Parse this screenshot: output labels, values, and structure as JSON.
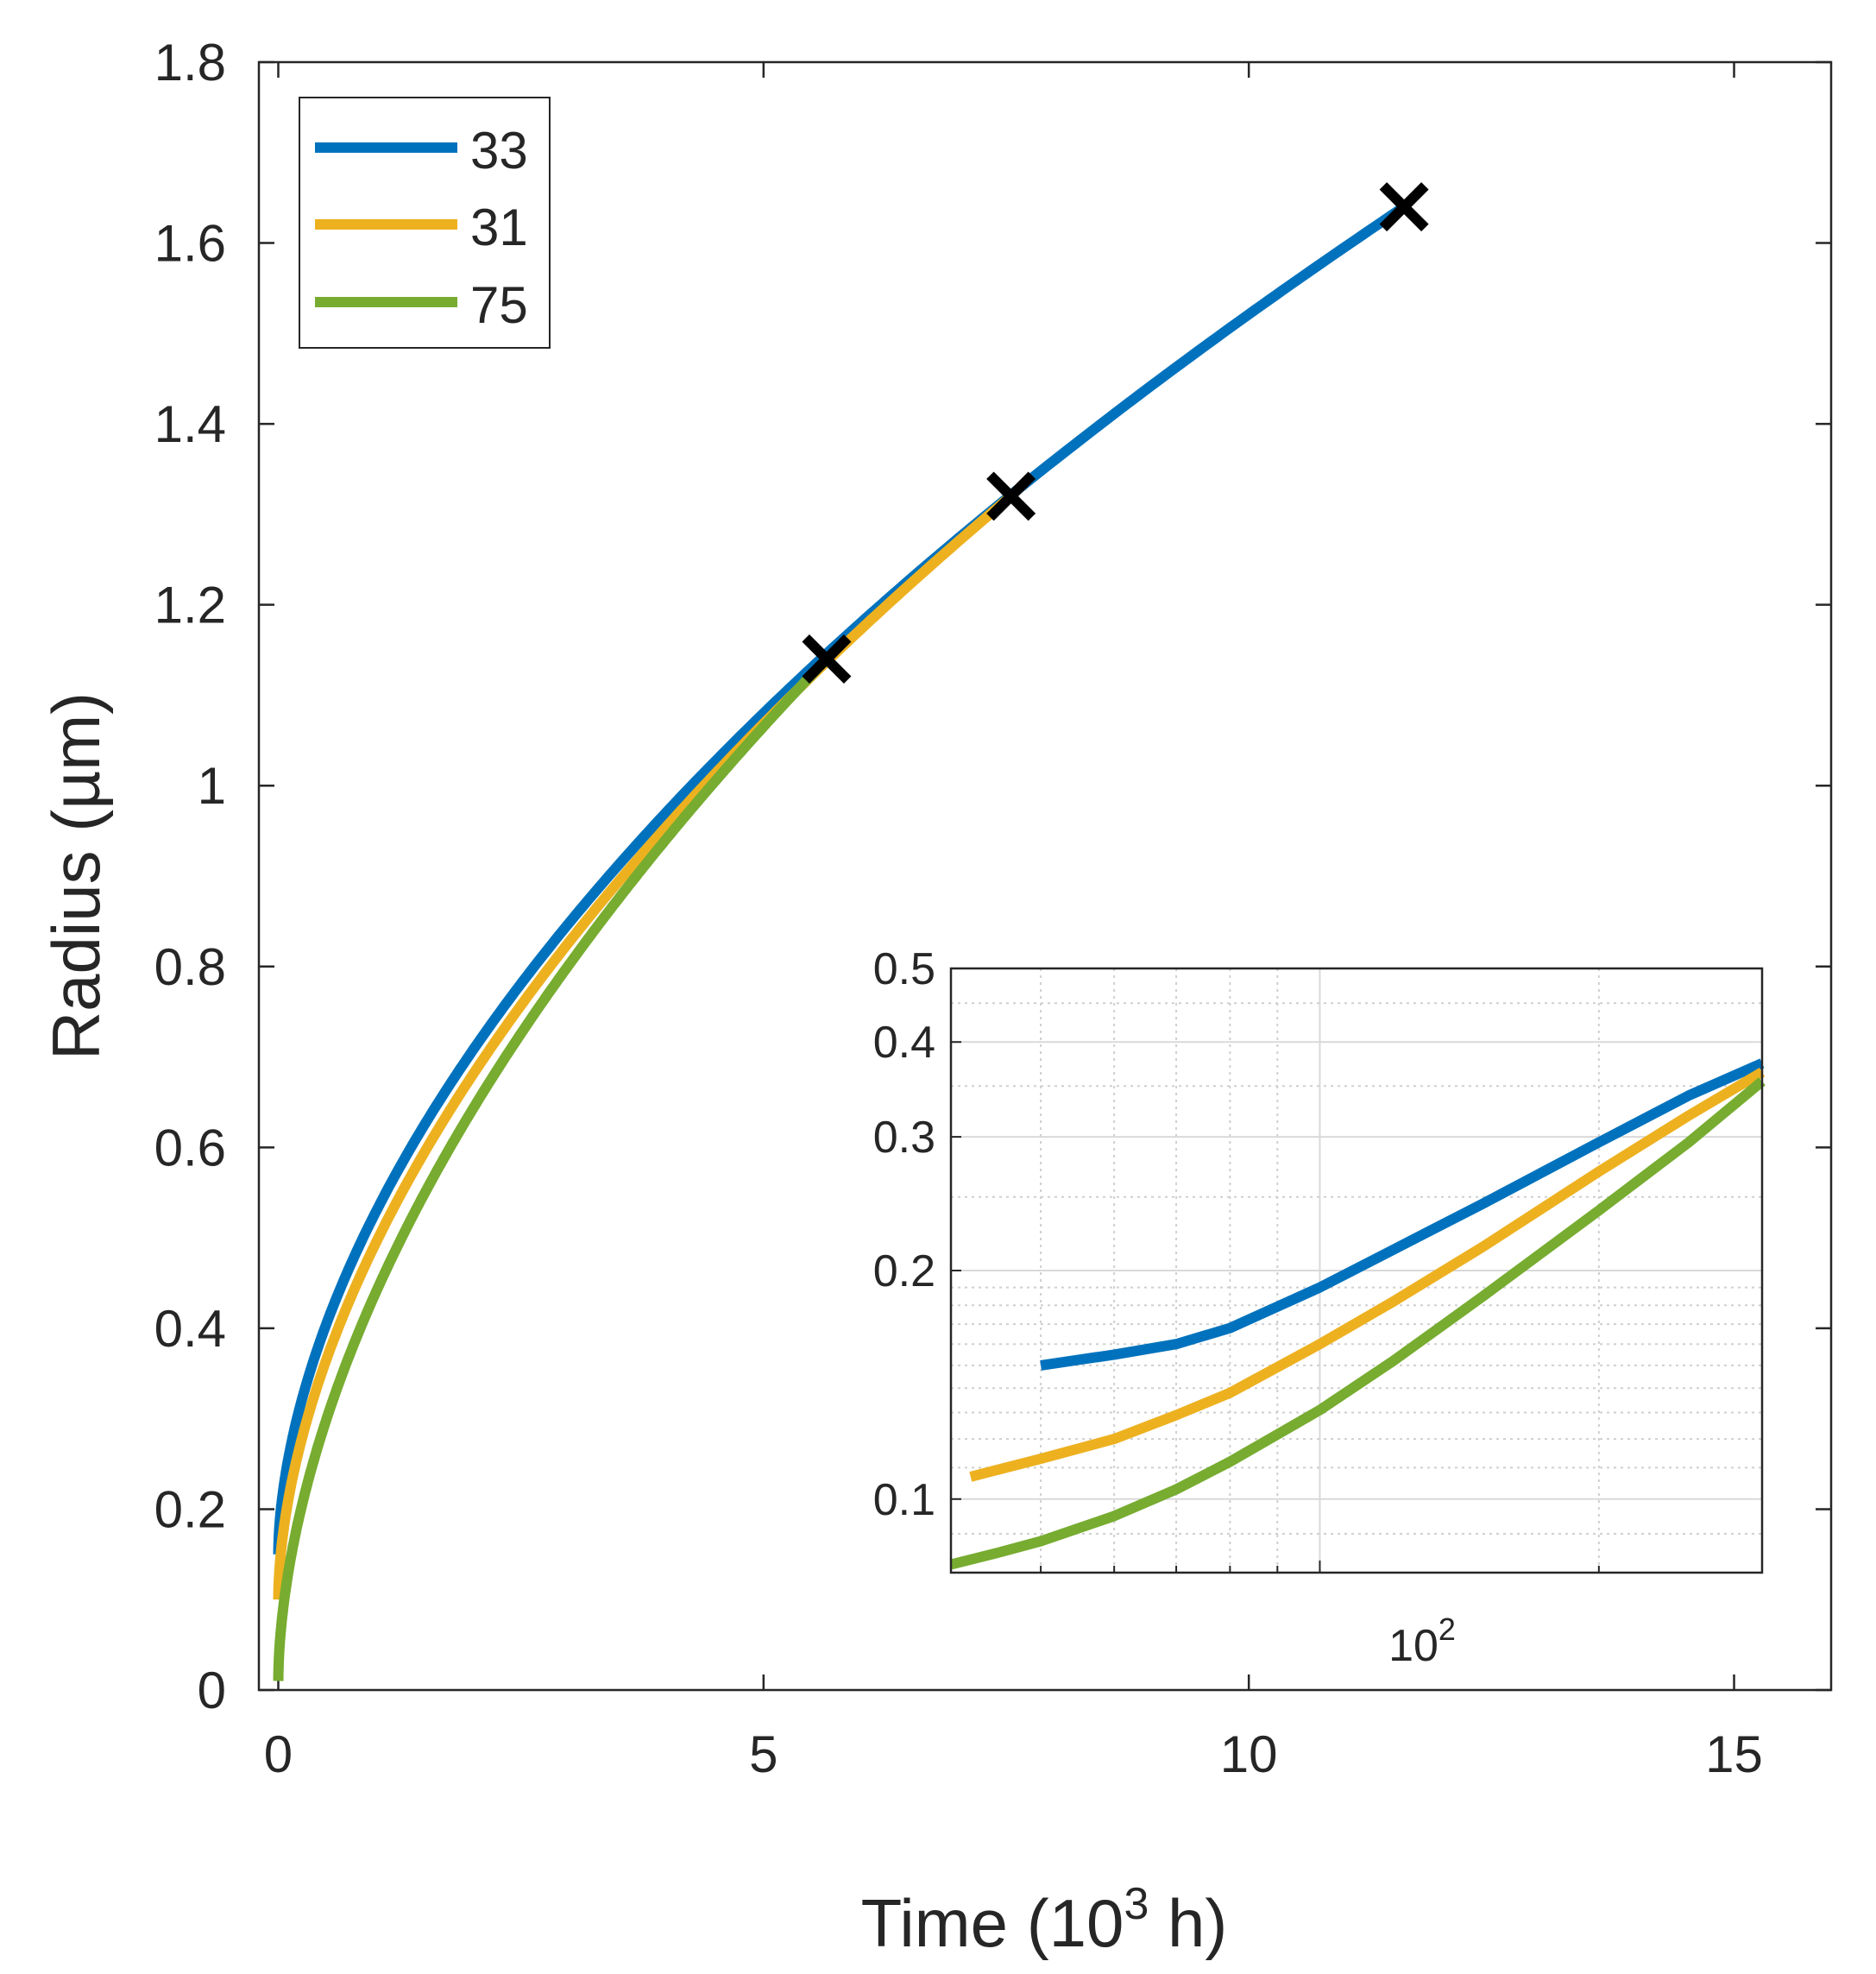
{
  "chart_data": [
    {
      "type": "line",
      "xlabel": "Time (10",
      "xlabel_exponent": "3",
      "xlabel_suffix": " h)",
      "ylabel": "Radius (µm)",
      "xlim": [
        -0.2,
        16
      ],
      "ylim": [
        0,
        1.8
      ],
      "xticks": [
        0,
        5,
        10,
        15
      ],
      "xtick_labels": [
        "0",
        "5",
        "10",
        "15"
      ],
      "yticks": [
        0,
        0.2,
        0.4,
        0.6,
        0.8,
        1,
        1.2,
        1.4,
        1.6,
        1.8
      ],
      "ytick_labels": [
        "0",
        "0.2",
        "0.4",
        "0.6",
        "0.8",
        "1",
        "1.2",
        "1.4",
        "1.6",
        "1.8"
      ],
      "grid": false,
      "legend_position": "top-left",
      "series": [
        {
          "name": "33",
          "color": "#0072BD",
          "t_end": 11.6,
          "r_end": 1.64,
          "r0": 0.15
        },
        {
          "name": "31",
          "color": "#EDB120",
          "t_end": 7.55,
          "r_end": 1.32,
          "r0": 0.1
        },
        {
          "name": "75",
          "color": "#77AC30",
          "t_end": 5.65,
          "r_end": 1.14,
          "r0": 0.01
        }
      ],
      "markers": [
        {
          "x": 5.65,
          "y": 1.14,
          "symbol": "x"
        },
        {
          "x": 7.55,
          "y": 1.32,
          "symbol": "x"
        },
        {
          "x": 11.6,
          "y": 1.64,
          "symbol": "x"
        }
      ]
    },
    {
      "type": "line",
      "scale": "log-log",
      "position": "bottom-right inset",
      "xlim": [
        40,
        300
      ],
      "ylim": [
        0.08,
        0.5
      ],
      "xtick_base": "10",
      "xtick_exponent": "2",
      "yticks": [
        0.1,
        0.2,
        0.3,
        0.4,
        0.5
      ],
      "ytick_labels": [
        "0.1",
        "0.2",
        "0.3",
        "0.4",
        "0.5"
      ],
      "grid": true,
      "series": [
        {
          "name": "33",
          "color": "#0072BD",
          "x": [
            50,
            60,
            70,
            80,
            100,
            120,
            150,
            200,
            250,
            300
          ],
          "y": [
            0.15,
            0.155,
            0.16,
            0.168,
            0.19,
            0.213,
            0.245,
            0.295,
            0.34,
            0.375
          ]
        },
        {
          "name": "31",
          "color": "#EDB120",
          "x": [
            42,
            50,
            60,
            70,
            80,
            100,
            120,
            150,
            200,
            250,
            300
          ],
          "y": [
            0.107,
            0.113,
            0.12,
            0.129,
            0.138,
            0.16,
            0.182,
            0.215,
            0.27,
            0.32,
            0.365
          ]
        },
        {
          "name": "75",
          "color": "#77AC30",
          "x": [
            40,
            45,
            50,
            60,
            70,
            80,
            100,
            120,
            150,
            200,
            250,
            300
          ],
          "y": [
            0.082,
            0.085,
            0.088,
            0.095,
            0.103,
            0.112,
            0.131,
            0.152,
            0.185,
            0.24,
            0.295,
            0.355
          ]
        }
      ]
    }
  ]
}
